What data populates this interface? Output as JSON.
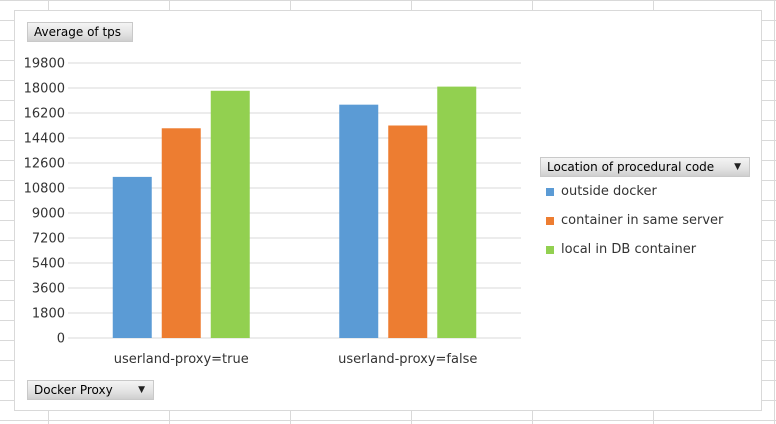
{
  "field_buttons": {
    "value_field": "Average of tps",
    "axis_field": "Docker Proxy",
    "legend_field": "Location of procedural code"
  },
  "chart_data": {
    "type": "bar",
    "categories": [
      "userland-proxy=true",
      "userland-proxy=false"
    ],
    "series": [
      {
        "name": "outside docker",
        "color": "#5b9bd5",
        "values": [
          11600,
          16800
        ]
      },
      {
        "name": "container in same server",
        "color": "#ed7d31",
        "values": [
          15100,
          15300
        ]
      },
      {
        "name": "local in DB container",
        "color": "#92d050",
        "values": [
          17800,
          18100
        ]
      }
    ],
    "ylim": [
      0,
      19800
    ],
    "yticks": [
      0,
      1800,
      3600,
      5400,
      7200,
      9000,
      10800,
      12600,
      14400,
      16200,
      18000,
      19800
    ],
    "title": "",
    "xlabel": "",
    "ylabel": "",
    "grid": true,
    "legend_position": "right"
  }
}
